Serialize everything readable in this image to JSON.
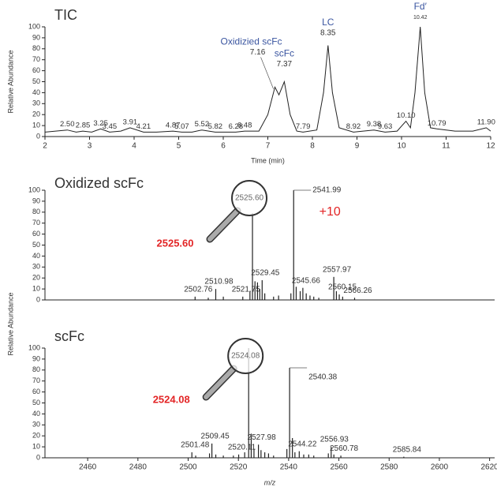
{
  "chart_data": [
    {
      "type": "line",
      "title": "TIC",
      "xlabel": "Time (min)",
      "ylabel": "Relative Abundance",
      "color": "#222222",
      "name_color": "#3a55a0",
      "xlim": [
        2,
        12
      ],
      "ylim": [
        0,
        100
      ],
      "xticks": [
        2,
        3,
        4,
        5,
        6,
        7,
        8,
        9,
        10,
        11,
        12
      ],
      "yticks": [
        0,
        10,
        20,
        30,
        40,
        50,
        60,
        70,
        80,
        90,
        100
      ],
      "x": [
        2.0,
        2.5,
        2.7,
        2.85,
        3.05,
        3.25,
        3.45,
        3.7,
        3.91,
        4.21,
        4.5,
        4.87,
        5.07,
        5.3,
        5.52,
        5.82,
        6.05,
        6.28,
        6.48,
        6.8,
        7.0,
        7.16,
        7.25,
        7.37,
        7.5,
        7.65,
        7.79,
        8.1,
        8.25,
        8.35,
        8.45,
        8.6,
        8.92,
        9.38,
        9.63,
        9.9,
        10.1,
        10.2,
        10.3,
        10.42,
        10.52,
        10.65,
        10.79,
        11.2,
        11.6,
        11.9,
        12.0
      ],
      "values": [
        4,
        6,
        4,
        5,
        4,
        7,
        4,
        5,
        8,
        4,
        4,
        5,
        4,
        4,
        6,
        4,
        4,
        4,
        5,
        5,
        20,
        45,
        38,
        50,
        20,
        5,
        4,
        6,
        40,
        83,
        40,
        8,
        4,
        6,
        4,
        5,
        14,
        8,
        40,
        100,
        40,
        8,
        7,
        5,
        5,
        8,
        5
      ],
      "peaks": [
        {
          "x": 2.5,
          "label": "2.50"
        },
        {
          "x": 2.85,
          "label": "2.85"
        },
        {
          "x": 3.25,
          "label": "3.25"
        },
        {
          "x": 3.45,
          "label": "3.45"
        },
        {
          "x": 3.91,
          "label": "3.91"
        },
        {
          "x": 4.21,
          "label": "4.21"
        },
        {
          "x": 4.87,
          "label": "4.87"
        },
        {
          "x": 5.07,
          "label": "5.07"
        },
        {
          "x": 5.52,
          "label": "5.52"
        },
        {
          "x": 5.82,
          "label": "5.82"
        },
        {
          "x": 6.28,
          "label": "6.28"
        },
        {
          "x": 6.48,
          "label": "6.48"
        },
        {
          "x": 7.16,
          "label": "7.16",
          "name": "Oxidizied scFc"
        },
        {
          "x": 7.37,
          "label": "7.37",
          "name": "scFc"
        },
        {
          "x": 7.79,
          "label": "7.79"
        },
        {
          "x": 8.35,
          "label": "8.35",
          "name": "LC"
        },
        {
          "x": 8.92,
          "label": "8.92"
        },
        {
          "x": 9.38,
          "label": "9.38"
        },
        {
          "x": 9.63,
          "label": "9.63"
        },
        {
          "x": 10.1,
          "label": "10.10"
        },
        {
          "x": 10.42,
          "label": "10.42",
          "name": "Fd′"
        },
        {
          "x": 10.79,
          "label": "10.79"
        },
        {
          "x": 11.9,
          "label": "11.90"
        }
      ]
    },
    {
      "type": "stem",
      "title": "Oxidized scFc",
      "ylabel": "Relative Abundance",
      "color": "#222222",
      "highlight": "2525.60",
      "shift": "+10",
      "highlight_color": "#e32526",
      "xlim": [
        2443,
        2622
      ],
      "ylim": [
        0,
        100
      ],
      "yticks": [
        0,
        10,
        20,
        30,
        40,
        50,
        60,
        70,
        80,
        90,
        100
      ],
      "peaks": [
        {
          "x": 2502.76,
          "y": 3,
          "label": "2502.76"
        },
        {
          "x": 2508,
          "y": 2
        },
        {
          "x": 2510.98,
          "y": 10,
          "label": "2510.98"
        },
        {
          "x": 2514,
          "y": 3
        },
        {
          "x": 2521.75,
          "y": 3,
          "label": "2521.75"
        },
        {
          "x": 2524.6,
          "y": 8
        },
        {
          "x": 2525.6,
          "y": 79,
          "label": "2525.60",
          "callout": true
        },
        {
          "x": 2526.6,
          "y": 17
        },
        {
          "x": 2527.6,
          "y": 16
        },
        {
          "x": 2528.5,
          "y": 10
        },
        {
          "x": 2529.45,
          "y": 18,
          "label": "2529.45"
        },
        {
          "x": 2530.5,
          "y": 6
        },
        {
          "x": 2534,
          "y": 3
        },
        {
          "x": 2536,
          "y": 4
        },
        {
          "x": 2540.9,
          "y": 6
        },
        {
          "x": 2541.99,
          "y": 100,
          "label": "2541.99"
        },
        {
          "x": 2543,
          "y": 12
        },
        {
          "x": 2544.6,
          "y": 8
        },
        {
          "x": 2545.66,
          "y": 11,
          "label": "2545.66"
        },
        {
          "x": 2547,
          "y": 6
        },
        {
          "x": 2548.5,
          "y": 4
        },
        {
          "x": 2550,
          "y": 3
        },
        {
          "x": 2552,
          "y": 2
        },
        {
          "x": 2557.97,
          "y": 21,
          "label": "2557.97"
        },
        {
          "x": 2559,
          "y": 8
        },
        {
          "x": 2560.15,
          "y": 5,
          "label": "2560.15"
        },
        {
          "x": 2561.5,
          "y": 3
        },
        {
          "x": 2566.26,
          "y": 2,
          "label": "2566.26"
        }
      ]
    },
    {
      "type": "stem",
      "title": "scFc",
      "xlabel": "m/z",
      "color": "#222222",
      "highlight": "2524.08",
      "highlight_color": "#e32526",
      "xlim": [
        2443,
        2622
      ],
      "ylim": [
        0,
        100
      ],
      "xticks": [
        2460,
        2480,
        2500,
        2520,
        2540,
        2560,
        2580,
        2600,
        2620
      ],
      "yticks": [
        0,
        10,
        20,
        30,
        40,
        50,
        60,
        70,
        80,
        90,
        100
      ],
      "peaks": [
        {
          "x": 2501.48,
          "y": 5,
          "label": "2501.48"
        },
        {
          "x": 2503,
          "y": 2
        },
        {
          "x": 2508.5,
          "y": 4
        },
        {
          "x": 2509.45,
          "y": 13,
          "label": "2509.45"
        },
        {
          "x": 2511,
          "y": 3
        },
        {
          "x": 2514,
          "y": 2
        },
        {
          "x": 2518,
          "y": 2
        },
        {
          "x": 2520.11,
          "y": 3,
          "label": "2520.11"
        },
        {
          "x": 2522.5,
          "y": 5
        },
        {
          "x": 2524.08,
          "y": 100,
          "label": "2524.08",
          "callout": true
        },
        {
          "x": 2525.1,
          "y": 22
        },
        {
          "x": 2526.2,
          "y": 8
        },
        {
          "x": 2527.98,
          "y": 12,
          "label": "2527.98"
        },
        {
          "x": 2529,
          "y": 7
        },
        {
          "x": 2530.5,
          "y": 5
        },
        {
          "x": 2532,
          "y": 4
        },
        {
          "x": 2534,
          "y": 2
        },
        {
          "x": 2539.3,
          "y": 8
        },
        {
          "x": 2540.38,
          "y": 82,
          "label": "2540.38"
        },
        {
          "x": 2541.5,
          "y": 18
        },
        {
          "x": 2542.5,
          "y": 5
        },
        {
          "x": 2544.22,
          "y": 6,
          "label": "2544.22"
        },
        {
          "x": 2546,
          "y": 3
        },
        {
          "x": 2548,
          "y": 3
        },
        {
          "x": 2550,
          "y": 2
        },
        {
          "x": 2555.8,
          "y": 4
        },
        {
          "x": 2556.93,
          "y": 10,
          "label": "2556.93"
        },
        {
          "x": 2558,
          "y": 3
        },
        {
          "x": 2560.78,
          "y": 2,
          "label": "2560.78"
        },
        {
          "x": 2585.84,
          "y": 1,
          "label": "2585.84"
        }
      ]
    }
  ]
}
